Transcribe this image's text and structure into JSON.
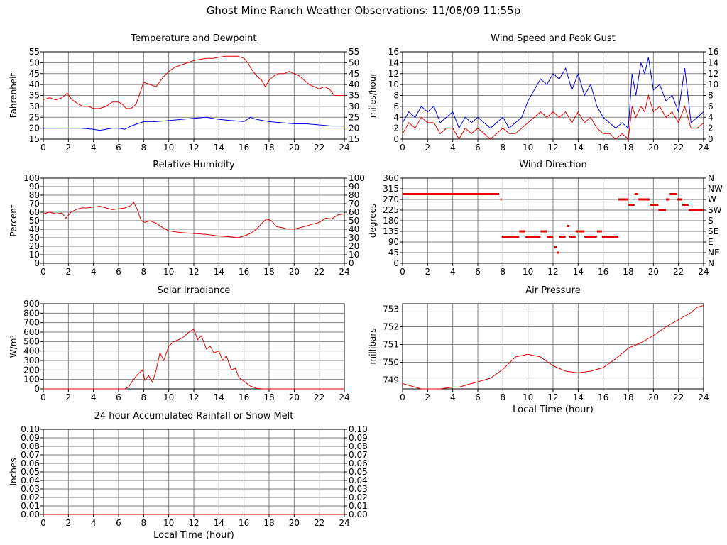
{
  "page": {
    "title": "Ghost Mine Ranch Weather Observations: 11/08/09 11:55p"
  },
  "colors": {
    "red": "#e00000",
    "blue": "#0000e0",
    "grid": "#808080"
  },
  "chart_data": [
    {
      "id": "temp",
      "type": "line",
      "title": "Temperature and Dewpoint",
      "xlabel": "",
      "ylabel": "Fahrenheit",
      "xlim": [
        0,
        24
      ],
      "ylim": [
        15,
        55
      ],
      "xticks": [
        "0",
        "2",
        "4",
        "6",
        "8",
        "10",
        "12",
        "14",
        "16",
        "18",
        "20",
        "22",
        "24"
      ],
      "yticks": [
        "15",
        "20",
        "25",
        "30",
        "35",
        "40",
        "45",
        "50",
        "55"
      ],
      "yticks_right": [
        "15",
        "20",
        "25",
        "30",
        "35",
        "40",
        "45",
        "50",
        "55"
      ],
      "series": [
        {
          "color": "#e00000",
          "x": [
            0,
            0.5,
            1,
            1.5,
            1.9,
            2.3,
            2.8,
            3.2,
            3.6,
            4,
            4.5,
            5,
            5.5,
            6,
            6.3,
            6.6,
            7,
            7.4,
            7.7,
            8,
            8.5,
            9,
            9.5,
            10,
            10.5,
            11,
            11.5,
            12,
            12.5,
            13,
            13.5,
            14,
            14.5,
            15,
            15.5,
            16,
            16.3,
            16.6,
            17,
            17.4,
            17.7,
            18,
            18.4,
            18.8,
            19.2,
            19.6,
            20,
            20.4,
            20.8,
            21.2,
            21.6,
            22,
            22.4,
            22.8,
            23.2,
            23.6,
            24
          ],
          "y": [
            33,
            34,
            33,
            34,
            36,
            33,
            31,
            30,
            30,
            29,
            29,
            30,
            32,
            32,
            31,
            29,
            29,
            31,
            36,
            41,
            40,
            39,
            43,
            46,
            48,
            49,
            50,
            51,
            51.5,
            52,
            52,
            52.5,
            53,
            53,
            53,
            52,
            50,
            47,
            44,
            42,
            39,
            42,
            44,
            45,
            45,
            46,
            45,
            44,
            42,
            40,
            39,
            38,
            39,
            38,
            35,
            35,
            35
          ]
        },
        {
          "color": "#0000e0",
          "x": [
            0,
            1,
            2,
            3,
            4,
            4.5,
            5,
            5.5,
            6,
            6.5,
            7,
            7.5,
            8,
            9,
            10,
            11,
            12,
            13,
            14,
            15,
            16,
            16.5,
            17,
            18,
            19,
            20,
            21,
            22,
            23,
            24
          ],
          "y": [
            20,
            20,
            20,
            20,
            19.5,
            19,
            19.5,
            20,
            20,
            19.5,
            21,
            22,
            23,
            23,
            23.5,
            24,
            24.5,
            25,
            24,
            23.5,
            23,
            25,
            24,
            23,
            22.5,
            22,
            22,
            21.5,
            21,
            21
          ]
        }
      ]
    },
    {
      "id": "wind",
      "type": "line",
      "title": "Wind Speed and Peak Gust",
      "xlabel": "",
      "ylabel": "miles/hour",
      "xlim": [
        0,
        24
      ],
      "ylim": [
        0,
        16
      ],
      "xticks": [
        "0",
        "2",
        "4",
        "6",
        "8",
        "10",
        "12",
        "14",
        "16",
        "18",
        "20",
        "22",
        "24"
      ],
      "yticks": [
        "0",
        "2",
        "4",
        "6",
        "8",
        "10",
        "12",
        "14",
        "16"
      ],
      "yticks_right": [
        "0",
        "2",
        "4",
        "6",
        "8",
        "10",
        "12",
        "14",
        "16"
      ],
      "series": [
        {
          "color": "#0000e0",
          "x": [
            0,
            0.5,
            1,
            1.5,
            2,
            2.5,
            3,
            3.5,
            4,
            4.5,
            5,
            5.5,
            6,
            6.5,
            7,
            7.5,
            8,
            8.5,
            9,
            9.5,
            10,
            10.5,
            11,
            11.5,
            12,
            12.5,
            13,
            13.5,
            14,
            14.5,
            15,
            15.5,
            16,
            16.5,
            17,
            17.5,
            18,
            18.3,
            18.6,
            19,
            19.3,
            19.6,
            20,
            20.5,
            21,
            21.5,
            22,
            22.5,
            23,
            23.5,
            24
          ],
          "y": [
            3,
            5,
            4,
            6,
            5,
            6,
            3,
            4,
            5,
            2,
            4,
            3,
            4,
            3,
            2,
            3,
            4,
            2,
            3,
            4,
            7,
            9,
            11,
            10,
            12,
            11,
            13,
            9,
            12,
            8,
            10,
            6,
            4,
            3,
            2,
            3,
            2,
            12,
            8,
            14,
            12,
            15,
            9,
            10,
            7,
            8,
            5,
            13,
            3,
            4,
            5
          ]
        },
        {
          "color": "#e00000",
          "x": [
            0,
            0.5,
            1,
            1.5,
            2,
            2.5,
            3,
            3.5,
            4,
            4.5,
            5,
            5.5,
            6,
            6.5,
            7,
            7.5,
            8,
            8.5,
            9,
            9.5,
            10,
            10.5,
            11,
            11.5,
            12,
            12.5,
            13,
            13.5,
            14,
            14.5,
            15,
            15.5,
            16,
            16.5,
            17,
            17.5,
            18,
            18.3,
            18.6,
            19,
            19.3,
            19.6,
            20,
            20.5,
            21,
            21.5,
            22,
            22.5,
            23,
            23.5,
            24
          ],
          "y": [
            1,
            3,
            2,
            4,
            3,
            3,
            1,
            2,
            2,
            0,
            2,
            1,
            2,
            1,
            0,
            1,
            2,
            1,
            1,
            2,
            3,
            4,
            5,
            4,
            5,
            4,
            5,
            3,
            5,
            3,
            4,
            2,
            1,
            1,
            0,
            1,
            0,
            6,
            4,
            6,
            5,
            8,
            5,
            6,
            4,
            5,
            3,
            6,
            2,
            2,
            3
          ]
        }
      ]
    },
    {
      "id": "humidity",
      "type": "line",
      "title": "Relative Humidity",
      "xlabel": "",
      "ylabel": "Percent",
      "xlim": [
        0,
        24
      ],
      "ylim": [
        0,
        100
      ],
      "xticks": [
        "0",
        "2",
        "4",
        "6",
        "8",
        "10",
        "12",
        "14",
        "16",
        "18",
        "20",
        "22",
        "24"
      ],
      "yticks": [
        "0",
        "10",
        "20",
        "30",
        "40",
        "50",
        "60",
        "70",
        "80",
        "90",
        "100"
      ],
      "yticks_right": [
        "0",
        "10",
        "20",
        "30",
        "40",
        "50",
        "60",
        "70",
        "80",
        "90",
        "100"
      ],
      "series": [
        {
          "color": "#e00000",
          "x": [
            0,
            0.5,
            1,
            1.5,
            1.8,
            2.2,
            2.6,
            3,
            3.5,
            4,
            4.5,
            5,
            5.5,
            6,
            6.5,
            7,
            7.2,
            7.5,
            7.8,
            8.1,
            8.5,
            9,
            9.5,
            10,
            11,
            12,
            13,
            14,
            15,
            15.5,
            16,
            16.5,
            17,
            17.5,
            17.8,
            18.2,
            18.6,
            19,
            19.5,
            20,
            20.5,
            21,
            21.5,
            22,
            22.5,
            23,
            23.5,
            24
          ],
          "y": [
            58,
            60,
            58,
            59,
            53,
            60,
            63,
            65,
            65,
            66,
            67,
            65,
            63,
            64,
            65,
            68,
            72,
            63,
            50,
            48,
            50,
            47,
            42,
            38,
            36,
            35,
            34,
            32,
            31,
            30,
            32,
            35,
            40,
            48,
            52,
            50,
            43,
            42,
            40,
            40,
            42,
            44,
            46,
            48,
            53,
            52,
            57,
            58
          ]
        }
      ]
    },
    {
      "id": "direction",
      "type": "scatter",
      "title": "Wind Direction",
      "xlabel": "",
      "ylabel": "degrees",
      "xlim": [
        0,
        24
      ],
      "ylim": [
        0,
        360
      ],
      "xticks": [
        "0",
        "2",
        "4",
        "6",
        "8",
        "10",
        "12",
        "14",
        "16",
        "18",
        "20",
        "22",
        "24"
      ],
      "yticks": [
        "0",
        "45",
        "90",
        "135",
        "180",
        "225",
        "270",
        "315",
        "360"
      ],
      "yticks_right": [
        "N",
        "NE",
        "E",
        "SE",
        "S",
        "SW",
        "W",
        "NW",
        "N"
      ],
      "series": [
        {
          "color": "#e00000",
          "segments": [
            [
              0,
              7.7,
              292.5
            ],
            [
              7.8,
              7.9,
              270
            ],
            [
              7.9,
              9.3,
              112.5
            ],
            [
              9.3,
              9.8,
              135
            ],
            [
              9.8,
              11,
              112.5
            ],
            [
              11,
              11.5,
              135
            ],
            [
              11.5,
              12,
              112.5
            ],
            [
              12.1,
              12.3,
              67.5
            ],
            [
              12.3,
              12.5,
              45
            ],
            [
              12.5,
              13,
              112.5
            ],
            [
              13.1,
              13.3,
              157.5
            ],
            [
              13.3,
              13.8,
              112.5
            ],
            [
              13.8,
              14.5,
              135
            ],
            [
              14.5,
              15.5,
              112.5
            ],
            [
              15.5,
              15.9,
              135
            ],
            [
              15.9,
              17.2,
              112.5
            ],
            [
              17.2,
              18,
              270
            ],
            [
              18,
              18.5,
              247.5
            ],
            [
              18.5,
              18.8,
              292.5
            ],
            [
              18.8,
              19.7,
              270
            ],
            [
              19.7,
              20.4,
              247.5
            ],
            [
              20.4,
              21,
              225
            ],
            [
              21,
              21.3,
              270
            ],
            [
              21.3,
              21.9,
              292.5
            ],
            [
              21.9,
              22.3,
              270
            ],
            [
              22.3,
              22.8,
              247.5
            ],
            [
              22.8,
              24,
              225
            ]
          ]
        }
      ]
    },
    {
      "id": "solar",
      "type": "line",
      "title": "Solar Irradiance",
      "xlabel": "",
      "ylabel": "W/m²",
      "xlim": [
        0,
        24
      ],
      "ylim": [
        0,
        900
      ],
      "xticks": [
        "0",
        "2",
        "4",
        "6",
        "8",
        "10",
        "12",
        "14",
        "16",
        "18",
        "20",
        "22",
        "24"
      ],
      "yticks": [
        "0",
        "100",
        "200",
        "300",
        "400",
        "500",
        "600",
        "700",
        "800",
        "900"
      ],
      "yticks_right": [],
      "series": [
        {
          "color": "#e00000",
          "x": [
            0,
            6.5,
            6.8,
            7.1,
            7.5,
            7.9,
            8.1,
            8.4,
            8.7,
            9,
            9.3,
            9.6,
            10,
            10.4,
            10.8,
            11.2,
            11.6,
            12,
            12.3,
            12.6,
            13,
            13.3,
            13.6,
            14,
            14.3,
            14.6,
            15,
            15.3,
            15.6,
            16,
            16.5,
            17,
            17.5,
            18,
            24
          ],
          "y": [
            0,
            0,
            20,
            80,
            150,
            200,
            90,
            140,
            70,
            200,
            380,
            300,
            450,
            500,
            520,
            550,
            600,
            630,
            520,
            560,
            420,
            450,
            380,
            400,
            300,
            350,
            200,
            220,
            120,
            80,
            30,
            5,
            0,
            0,
            0
          ]
        }
      ]
    },
    {
      "id": "pressure",
      "type": "line",
      "title": "Air Pressure",
      "xlabel": "Local Time (hour)",
      "ylabel": "millibars",
      "xlim": [
        0,
        24
      ],
      "ylim": [
        748.5,
        753.3
      ],
      "xticks": [
        "0",
        "2",
        "4",
        "6",
        "8",
        "10",
        "12",
        "14",
        "16",
        "18",
        "20",
        "22",
        "24"
      ],
      "yticks": [
        "749",
        "750",
        "751",
        "752",
        "753"
      ],
      "yticks_right": [],
      "series": [
        {
          "color": "#e00000",
          "x": [
            0,
            0.5,
            1,
            1.5,
            2,
            3,
            4,
            4.5,
            5,
            6,
            7,
            8,
            9,
            10,
            11,
            12,
            13,
            14,
            15,
            16,
            17,
            18,
            19,
            20,
            21,
            22,
            23,
            23.5,
            24
          ],
          "y": [
            748.8,
            748.7,
            748.6,
            748.5,
            748.5,
            748.5,
            748.6,
            748.6,
            748.7,
            748.9,
            749.1,
            749.6,
            750.3,
            750.45,
            750.3,
            749.8,
            749.5,
            749.4,
            749.5,
            749.7,
            750.2,
            750.8,
            751.1,
            751.5,
            752,
            752.4,
            752.8,
            753.1,
            753.2
          ]
        }
      ]
    },
    {
      "id": "rain",
      "type": "line",
      "title": "24 hour Accumulated Rainfall or Snow Melt",
      "xlabel": "Local Time (hour)",
      "ylabel": "Inches",
      "xlim": [
        0,
        24
      ],
      "ylim": [
        0,
        0.1
      ],
      "xticks": [
        "0",
        "2",
        "4",
        "6",
        "8",
        "10",
        "12",
        "14",
        "16",
        "18",
        "20",
        "22",
        "24"
      ],
      "yticks": [
        "0.00",
        "0.01",
        "0.02",
        "0.03",
        "0.04",
        "0.05",
        "0.06",
        "0.07",
        "0.08",
        "0.09",
        "0.10"
      ],
      "yticks_right": [
        "0.00",
        "0.01",
        "0.02",
        "0.03",
        "0.04",
        "0.05",
        "0.06",
        "0.07",
        "0.08",
        "0.09",
        "0.10"
      ],
      "series": [
        {
          "color": "#e00000",
          "x": [
            0,
            24
          ],
          "y": [
            0,
            0
          ]
        }
      ]
    }
  ]
}
